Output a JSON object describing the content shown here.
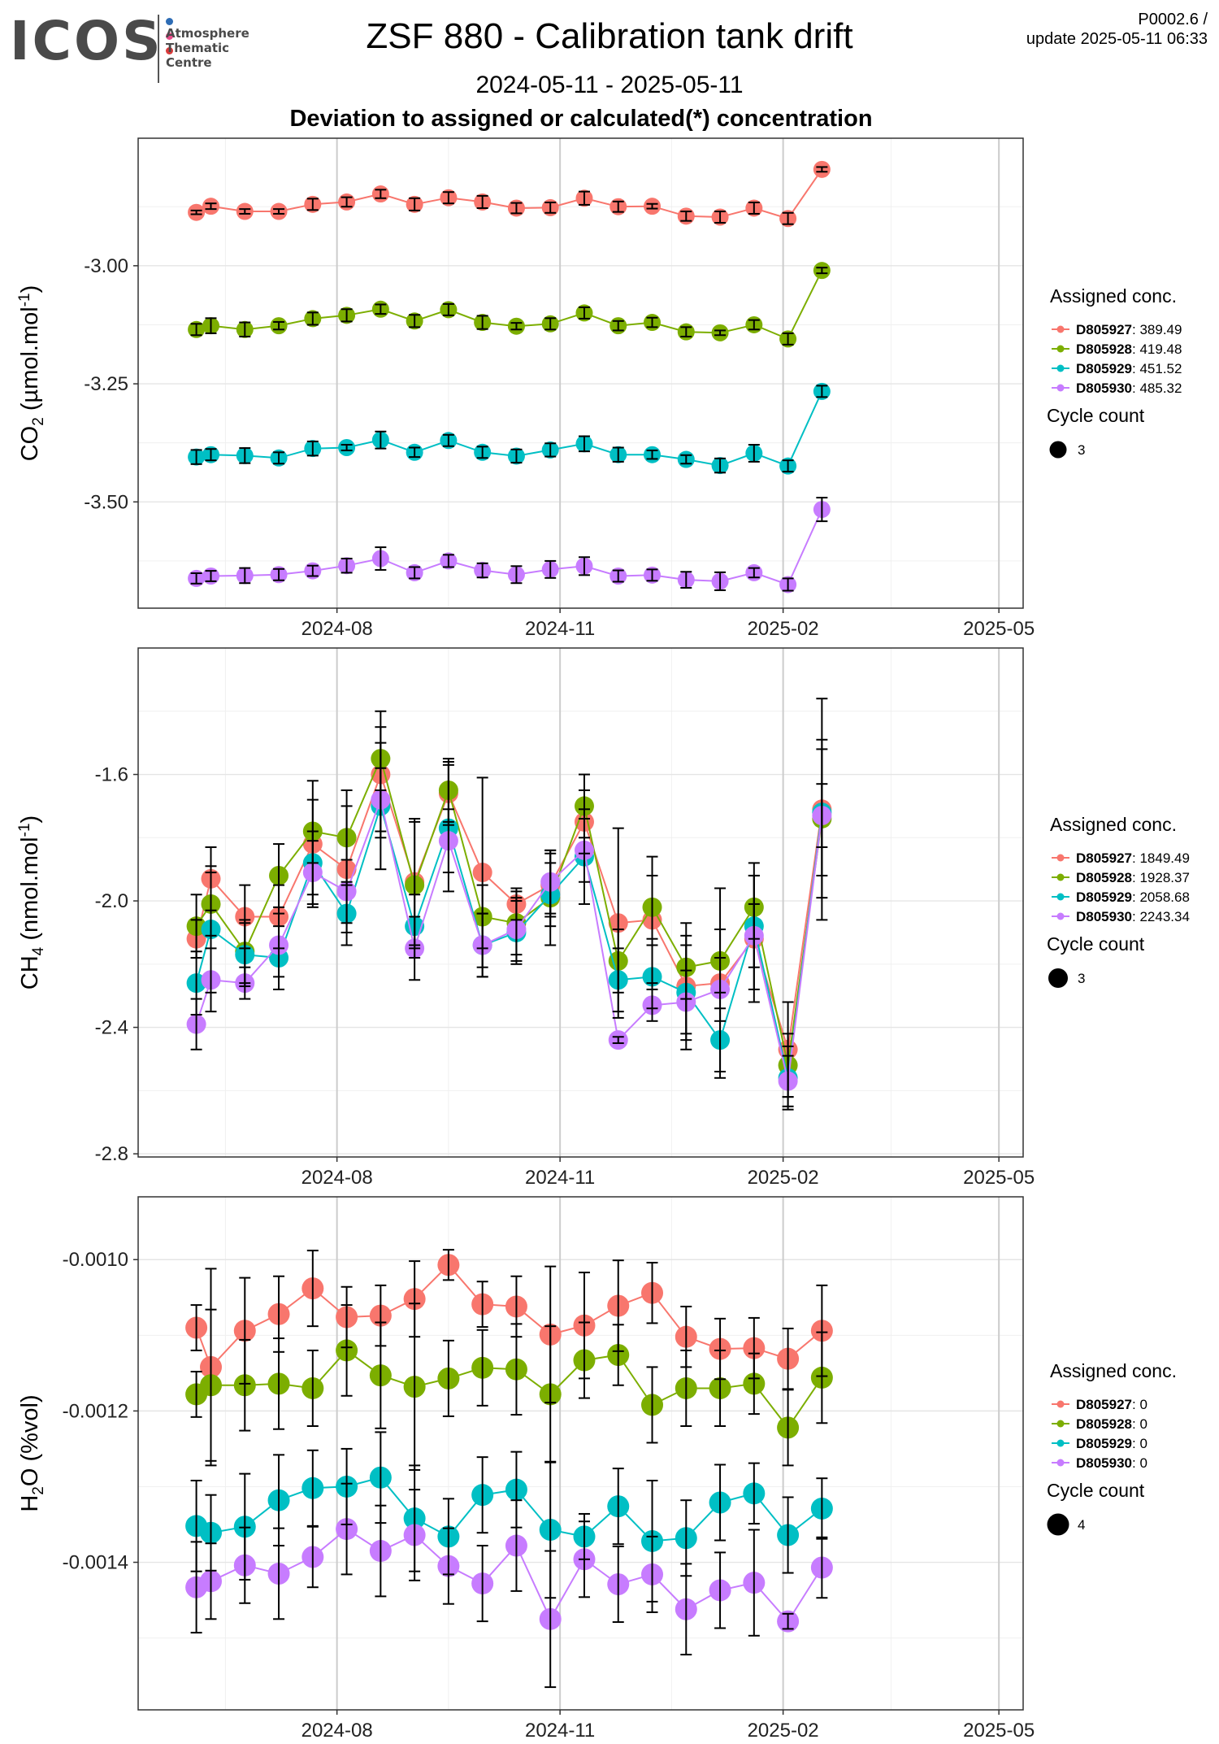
{
  "header": {
    "logo": "ICOS",
    "logo_subtitle": [
      "Atmosphere",
      "Thematic",
      "Centre"
    ],
    "logo_dot_colors": [
      "#2d6cb5",
      "#e94d8a",
      "#d93a3a"
    ],
    "title": "ZSF 880 - Calibration tank drift",
    "date_range": "2024-05-11 - 2025-05-11",
    "subtitle": "Deviation to assigned or calculated(*) concentration",
    "corner_line1": "P0002.6 /",
    "corner_line2": "update  2025-05-11 06:33"
  },
  "colors": {
    "D805927": "#F8766D",
    "D805928": "#7CAE00",
    "D805929": "#00BFC4",
    "D805930": "#C77CFF"
  },
  "chart_data": [
    {
      "type": "line",
      "ylabel": "CO2 (µmol.mol-1)",
      "ylabel_main": "CO",
      "ylabel_sub": "2",
      "ylabel_rest": " (µmol.mol",
      "ylabel_sup": "-1",
      "ylabel_end": ")",
      "xlim": [
        "2024-05-11",
        "2025-05-11"
      ],
      "ylim": [
        -3.725,
        -2.73
      ],
      "y_ticks": [
        -3.0,
        -3.25,
        -3.5
      ],
      "y_tick_labels": [
        "-3.00",
        "-3.25",
        "-3.50"
      ],
      "x_ticks": [
        "2024-08-01",
        "2024-11-01",
        "2025-02-01",
        "2025-05-01"
      ],
      "x_tick_labels": [
        "2024-08",
        "2024-11",
        "2025-02",
        "2025-05"
      ],
      "legend_title": "Assigned conc.",
      "size_title": "Cycle count",
      "size_value": "3",
      "dates": [
        "2024-06-04",
        "2024-06-10",
        "2024-06-24",
        "2024-07-08",
        "2024-07-22",
        "2024-08-05",
        "2024-08-19",
        "2024-09-02",
        "2024-09-16",
        "2024-09-30",
        "2024-10-14",
        "2024-10-28",
        "2024-11-11",
        "2024-11-25",
        "2024-12-09",
        "2024-12-23",
        "2025-01-06",
        "2025-01-20",
        "2025-02-03",
        "2025-02-17"
      ],
      "series": [
        {
          "name": "D805927",
          "value_label": "389.49",
          "values": [
            -2.887,
            -2.874,
            -2.885,
            -2.885,
            -2.87,
            -2.865,
            -2.848,
            -2.87,
            -2.856,
            -2.865,
            -2.878,
            -2.877,
            -2.857,
            -2.875,
            -2.874,
            -2.895,
            -2.897,
            -2.878,
            -2.9,
            -2.796
          ],
          "errors": [
            0.004,
            0.006,
            0.005,
            0.005,
            0.012,
            0.01,
            0.009,
            0.013,
            0.012,
            0.013,
            0.011,
            0.011,
            0.014,
            0.011,
            0.005,
            0.01,
            0.012,
            0.012,
            0.012,
            0.005
          ]
        },
        {
          "name": "D805928",
          "value_label": "419.48",
          "values": [
            -3.135,
            -3.127,
            -3.135,
            -3.127,
            -3.112,
            -3.105,
            -3.092,
            -3.117,
            -3.093,
            -3.12,
            -3.128,
            -3.123,
            -3.1,
            -3.127,
            -3.12,
            -3.14,
            -3.142,
            -3.125,
            -3.155,
            -3.01
          ],
          "errors": [
            0.012,
            0.016,
            0.015,
            0.008,
            0.013,
            0.013,
            0.01,
            0.013,
            0.012,
            0.014,
            0.007,
            0.012,
            0.012,
            0.01,
            0.01,
            0.01,
            0.005,
            0.01,
            0.012,
            0.006
          ]
        },
        {
          "name": "D805929",
          "value_label": "451.52",
          "values": [
            -3.405,
            -3.4,
            -3.402,
            -3.407,
            -3.387,
            -3.385,
            -3.369,
            -3.395,
            -3.37,
            -3.395,
            -3.403,
            -3.39,
            -3.377,
            -3.4,
            -3.4,
            -3.41,
            -3.423,
            -3.397,
            -3.424,
            -3.266
          ],
          "errors": [
            0.015,
            0.012,
            0.016,
            0.012,
            0.015,
            0.006,
            0.018,
            0.01,
            0.012,
            0.012,
            0.014,
            0.014,
            0.016,
            0.015,
            0.009,
            0.009,
            0.015,
            0.018,
            0.012,
            0.012
          ]
        },
        {
          "name": "D805930",
          "value_label": "485.32",
          "values": [
            -3.662,
            -3.657,
            -3.656,
            -3.654,
            -3.646,
            -3.635,
            -3.62,
            -3.65,
            -3.625,
            -3.645,
            -3.654,
            -3.643,
            -3.636,
            -3.657,
            -3.655,
            -3.665,
            -3.668,
            -3.65,
            -3.675,
            -3.516
          ],
          "errors": [
            0.011,
            0.011,
            0.016,
            0.012,
            0.011,
            0.015,
            0.024,
            0.012,
            0.013,
            0.015,
            0.018,
            0.018,
            0.019,
            0.012,
            0.012,
            0.017,
            0.019,
            0.01,
            0.013,
            0.025
          ]
        }
      ]
    },
    {
      "type": "line",
      "ylabel": "CH4 (nmol.mol-1)",
      "ylabel_main": "CH",
      "ylabel_sub": "4",
      "ylabel_rest": " (nmol.mol",
      "ylabel_sup": "-1",
      "ylabel_end": ")",
      "xlim": [
        "2024-05-11",
        "2025-05-11"
      ],
      "ylim": [
        -2.81,
        -1.2
      ],
      "y_ticks": [
        -1.6,
        -2.0,
        -2.4,
        -2.8
      ],
      "y_tick_labels": [
        "-1.6",
        "-2.0",
        "-2.4",
        "-2.8"
      ],
      "x_ticks": [
        "2024-08-01",
        "2024-11-01",
        "2025-02-01",
        "2025-05-01"
      ],
      "x_tick_labels": [
        "2024-08",
        "2024-11",
        "2025-02",
        "2025-05"
      ],
      "legend_title": "Assigned conc.",
      "size_title": "Cycle count",
      "size_value": "3",
      "dates": [
        "2024-06-04",
        "2024-06-10",
        "2024-06-24",
        "2024-07-08",
        "2024-07-22",
        "2024-08-05",
        "2024-08-19",
        "2024-09-02",
        "2024-09-16",
        "2024-09-30",
        "2024-10-14",
        "2024-10-28",
        "2024-11-11",
        "2024-11-25",
        "2024-12-09",
        "2024-12-23",
        "2025-01-06",
        "2025-01-20",
        "2025-02-03",
        "2025-02-17"
      ],
      "series": [
        {
          "name": "D805927",
          "value_label": "1849.49",
          "values": [
            -2.12,
            -1.93,
            -2.05,
            -2.05,
            -1.82,
            -1.9,
            -1.6,
            -1.94,
            -1.66,
            -1.91,
            -2.01,
            -1.95,
            -1.75,
            -2.07,
            -2.06,
            -2.27,
            -2.26,
            -2.12,
            -2.47,
            -1.71
          ],
          "errors": [
            0.06,
            0.1,
            0.1,
            0.1,
            0.2,
            0.2,
            0.2,
            0.2,
            0.1,
            0.3,
            0.05,
            0.1,
            0.1,
            0.3,
            0.2,
            0.2,
            0.3,
            0.2,
            0.15,
            0.35
          ]
        },
        {
          "name": "D805928",
          "value_label": "1928.37",
          "values": [
            -2.08,
            -2.01,
            -2.16,
            -1.92,
            -1.78,
            -1.8,
            -1.55,
            -1.95,
            -1.65,
            -2.05,
            -2.07,
            -1.99,
            -1.7,
            -2.19,
            -2.02,
            -2.21,
            -2.19,
            -2.02,
            -2.52,
            -1.74
          ],
          "errors": [
            0.1,
            0.1,
            0.1,
            0.1,
            0.1,
            0.15,
            0.1,
            0.2,
            0.1,
            0.1,
            0.1,
            0.15,
            0.1,
            0.1,
            0.1,
            0.1,
            0.1,
            0.1,
            0.1,
            0.25
          ]
        },
        {
          "name": "D805929",
          "value_label": "2058.68",
          "values": [
            -2.26,
            -2.09,
            -2.17,
            -2.18,
            -1.88,
            -2.04,
            -1.7,
            -2.08,
            -1.77,
            -2.14,
            -2.1,
            -1.98,
            -1.86,
            -2.25,
            -2.24,
            -2.29,
            -2.44,
            -2.08,
            -2.56,
            -1.72
          ],
          "errors": [
            0.1,
            0.2,
            0.1,
            0.1,
            0.1,
            0.1,
            0.2,
            0.1,
            0.2,
            0.1,
            0.1,
            0.1,
            0.15,
            0.1,
            0.1,
            0.15,
            0.1,
            0.2,
            0.1,
            0.2
          ]
        },
        {
          "name": "D805930",
          "value_label": "2243.34",
          "values": [
            -2.39,
            -2.25,
            -2.26,
            -2.14,
            -1.91,
            -1.97,
            -1.68,
            -2.15,
            -1.81,
            -2.14,
            -2.09,
            -1.94,
            -1.84,
            -2.44,
            -2.33,
            -2.32,
            -2.28,
            -2.11,
            -2.57,
            -1.73
          ],
          "errors": [
            0.08,
            0.1,
            0.05,
            0.1,
            0.1,
            0.1,
            0.1,
            0.1,
            0.1,
            0.1,
            0.1,
            0.1,
            0.1,
            0.01,
            0.05,
            0.1,
            0.1,
            0.1,
            0.08,
            0.1
          ]
        }
      ]
    },
    {
      "type": "line",
      "ylabel": "H2O (%vol)",
      "ylabel_main": "H",
      "ylabel_sub": "2",
      "ylabel_rest": "O (%vol)",
      "ylabel_sup": "",
      "ylabel_end": "",
      "xlim": [
        "2024-05-11",
        "2025-05-11"
      ],
      "ylim": [
        -0.001595,
        -0.000917
      ],
      "y_ticks": [
        -0.001,
        -0.0012,
        -0.0014
      ],
      "y_tick_labels": [
        "-0.0010",
        "-0.0012",
        "-0.0014"
      ],
      "x_ticks": [
        "2024-08-01",
        "2024-11-01",
        "2025-02-01",
        "2025-05-01"
      ],
      "x_tick_labels": [
        "2024-08",
        "2024-11",
        "2025-02",
        "2025-05"
      ],
      "legend_title": "Assigned conc.",
      "size_title": "Cycle count",
      "size_value": "4",
      "dates": [
        "2024-06-04",
        "2024-06-10",
        "2024-06-24",
        "2024-07-08",
        "2024-07-22",
        "2024-08-05",
        "2024-08-19",
        "2024-09-02",
        "2024-09-16",
        "2024-09-30",
        "2024-10-14",
        "2024-10-28",
        "2024-11-11",
        "2024-11-25",
        "2024-12-09",
        "2024-12-23",
        "2025-01-06",
        "2025-01-20",
        "2025-02-03",
        "2025-02-17"
      ],
      "series": [
        {
          "name": "D805927",
          "value_label": "0",
          "values": [
            -0.00109,
            -0.001142,
            -0.001094,
            -0.001072,
            -0.001038,
            -0.001076,
            -0.001074,
            -0.001052,
            -0.001007,
            -0.001059,
            -0.001062,
            -0.001099,
            -0.001087,
            -0.001061,
            -0.001044,
            -0.001102,
            -0.001118,
            -0.001117,
            -0.001131,
            -0.001094
          ],
          "errors": [
            3e-05,
            0.00013,
            7e-05,
            5e-05,
            5e-05,
            4e-05,
            4e-05,
            5e-05,
            2e-05,
            3e-05,
            4e-05,
            9e-05,
            7e-05,
            6e-05,
            4e-05,
            4e-05,
            4e-05,
            4e-05,
            4e-05,
            6e-05
          ]
        },
        {
          "name": "D805928",
          "value_label": "0",
          "values": [
            -0.001178,
            -0.001166,
            -0.001166,
            -0.001164,
            -0.00117,
            -0.00112,
            -0.001153,
            -0.001168,
            -0.001157,
            -0.001143,
            -0.001145,
            -0.001178,
            -0.001133,
            -0.001126,
            -0.001192,
            -0.00117,
            -0.00117,
            -0.001164,
            -0.001222,
            -0.001156
          ],
          "errors": [
            3e-05,
            0.0001,
            6e-05,
            6e-05,
            5e-05,
            6e-05,
            7e-05,
            0.00011,
            5e-05,
            5e-05,
            6e-05,
            9e-05,
            5e-05,
            4e-05,
            5e-05,
            5e-05,
            5e-05,
            4e-05,
            5e-05,
            6e-05
          ]
        },
        {
          "name": "D805929",
          "value_label": "0",
          "values": [
            -0.001352,
            -0.001361,
            -0.001353,
            -0.001318,
            -0.001302,
            -0.0013,
            -0.001288,
            -0.001342,
            -0.001366,
            -0.001311,
            -0.001304,
            -0.001357,
            -0.001366,
            -0.001326,
            -0.001372,
            -0.001368,
            -0.001321,
            -0.001309,
            -0.001364,
            -0.001329
          ],
          "errors": [
            6e-05,
            5e-05,
            7e-05,
            6e-05,
            5e-05,
            5e-05,
            6e-05,
            7e-05,
            5e-05,
            5e-05,
            5e-05,
            9e-05,
            3e-05,
            5e-05,
            8e-05,
            5e-05,
            5e-05,
            4e-05,
            5e-05,
            4e-05
          ]
        },
        {
          "name": "D805930",
          "value_label": "0",
          "values": [
            -0.001433,
            -0.001425,
            -0.001404,
            -0.001415,
            -0.001393,
            -0.001356,
            -0.001385,
            -0.001364,
            -0.001405,
            -0.001428,
            -0.001378,
            -0.001475,
            -0.001396,
            -0.001429,
            -0.001416,
            -0.001462,
            -0.001437,
            -0.001427,
            -0.001478,
            -0.001407
          ],
          "errors": [
            6e-05,
            5e-05,
            5e-05,
            6e-05,
            4e-05,
            6e-05,
            6e-05,
            6e-05,
            5e-05,
            5e-05,
            6e-05,
            9e-05,
            5e-05,
            5e-05,
            5e-05,
            6e-05,
            5e-05,
            7e-05,
            1e-05,
            4e-05
          ]
        }
      ]
    }
  ]
}
